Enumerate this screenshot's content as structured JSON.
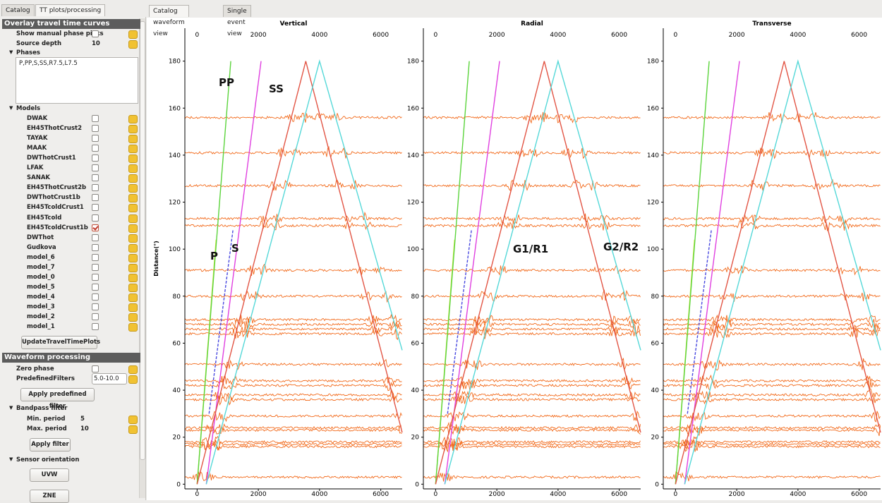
{
  "left_tabs": [
    "Catalog",
    "TT plots/processing"
  ],
  "right_tabs": [
    "Catalog waveform view",
    "Single event view"
  ],
  "overlay": {
    "title": "Overlay travel time curves",
    "manual_picks_label": "Show manual phase picks",
    "manual_picks_checked": false,
    "depth_label": "Source depth",
    "depth_value": 10,
    "phases_label": "Phases",
    "phases_text": "P,PP,S,SS,R7.5,L7.5",
    "models_label": "Models",
    "models": [
      {
        "name": "DWAK",
        "checked": false
      },
      {
        "name": "EH45ThotCrust2",
        "checked": false
      },
      {
        "name": "TAYAK",
        "checked": false
      },
      {
        "name": "MAAK",
        "checked": false
      },
      {
        "name": "DWThotCrust1",
        "checked": false
      },
      {
        "name": "LFAK",
        "checked": false
      },
      {
        "name": "SANAK",
        "checked": false
      },
      {
        "name": "EH45ThotCrust2b",
        "checked": false
      },
      {
        "name": "DWThotCrust1b",
        "checked": false
      },
      {
        "name": "EH45TcoldCrust1",
        "checked": false
      },
      {
        "name": "EH45Tcold",
        "checked": false
      },
      {
        "name": "EH45TcoldCrust1b",
        "checked": true
      },
      {
        "name": "DWThot",
        "checked": false
      },
      {
        "name": "Gudkova",
        "checked": false
      },
      {
        "name": "model_6",
        "checked": false
      },
      {
        "name": "model_7",
        "checked": false
      },
      {
        "name": "model_0",
        "checked": false
      },
      {
        "name": "model_5",
        "checked": false
      },
      {
        "name": "model_4",
        "checked": false
      },
      {
        "name": "model_3",
        "checked": false
      },
      {
        "name": "model_2",
        "checked": false
      },
      {
        "name": "model_1",
        "checked": false
      }
    ],
    "update_button": "UpdateTravelTimePlots"
  },
  "processing": {
    "title": "Waveform processing",
    "zero_phase_label": "Zero phase",
    "zero_phase_checked": false,
    "filters_label": "PredefinedFilters",
    "filters_value": "5.0-10.0",
    "apply_predefined_button": "Apply predefined filter",
    "bandpass_label": "Bandpass filter",
    "min_label": "Min. period",
    "min_value": 5,
    "max_label": "Max. period",
    "max_value": 10,
    "apply_filter_button": "Apply filter",
    "orientation_label": "Sensor orientation",
    "uvw_button": "UVW",
    "zne_button": "ZNE"
  },
  "chart_data": [
    {
      "type": "line",
      "title": "Vertical",
      "ylabel": "Distance(°)",
      "xlim": [
        -400,
        6700
      ],
      "xticks": [
        0,
        2000,
        4000,
        6000
      ],
      "ylim": [
        -2,
        194
      ],
      "yticks": [
        0,
        20,
        40,
        60,
        80,
        100,
        120,
        140,
        160,
        180
      ],
      "traces": [
        3,
        16,
        17,
        18,
        23,
        24,
        29,
        36,
        38,
        42,
        44,
        51,
        64,
        66,
        68,
        70,
        80,
        91,
        110,
        113,
        127,
        141,
        156
      ],
      "trace_color": "#f26a1b",
      "series": [
        {
          "color": "#d6e64a",
          "x": [
            0,
            620
          ],
          "values": [
            0,
            104
          ]
        },
        {
          "color": "#5bd43c",
          "x": [
            0,
            1100
          ],
          "values": [
            0,
            180
          ]
        },
        {
          "color": "#4a4ae0",
          "dash": true,
          "x": [
            390,
            1170
          ],
          "values": [
            30,
            108
          ]
        },
        {
          "color": "#e040e0",
          "x": [
            300,
            2090
          ],
          "values": [
            0,
            180
          ]
        },
        {
          "color": "#e25545",
          "x": [
            0,
            3550,
            6700
          ],
          "values": [
            0,
            180,
            22
          ]
        },
        {
          "color": "#55d8d8",
          "x": [
            300,
            4000,
            6700
          ],
          "values": [
            0,
            180,
            57
          ]
        }
      ],
      "annotations": [
        "PP",
        "SS",
        "S",
        "P"
      ]
    },
    {
      "type": "line",
      "title": "Radial",
      "xlim": [
        -400,
        6700
      ],
      "xticks": [
        0,
        2000,
        4000,
        6000
      ],
      "ylim": [
        -2,
        194
      ],
      "yticks": [
        0,
        20,
        40,
        60,
        80,
        100,
        120,
        140,
        160,
        180
      ],
      "traces": [
        3,
        16,
        17,
        18,
        23,
        24,
        29,
        36,
        38,
        42,
        44,
        51,
        64,
        66,
        68,
        70,
        80,
        91,
        110,
        113,
        127,
        141,
        156
      ],
      "trace_color": "#f26a1b",
      "series": [
        {
          "color": "#d6e64a",
          "x": [
            0,
            620
          ],
          "values": [
            0,
            104
          ]
        },
        {
          "color": "#5bd43c",
          "x": [
            0,
            1100
          ],
          "values": [
            0,
            180
          ]
        },
        {
          "color": "#4a4ae0",
          "dash": true,
          "x": [
            390,
            1170
          ],
          "values": [
            30,
            108
          ]
        },
        {
          "color": "#e040e0",
          "x": [
            300,
            2090
          ],
          "values": [
            0,
            180
          ]
        },
        {
          "color": "#e25545",
          "x": [
            0,
            3550,
            6700
          ],
          "values": [
            0,
            180,
            22
          ]
        },
        {
          "color": "#55d8d8",
          "x": [
            300,
            4000,
            6700
          ],
          "values": [
            0,
            180,
            57
          ]
        }
      ],
      "annotations": [
        "G1/R1",
        "G2/R2"
      ]
    },
    {
      "type": "line",
      "title": "Transverse",
      "xlim": [
        -400,
        6700
      ],
      "xticks": [
        0,
        2000,
        4000,
        6000
      ],
      "ylim": [
        -2,
        194
      ],
      "yticks": [
        0,
        20,
        40,
        60,
        80,
        100,
        120,
        140,
        160,
        180
      ],
      "traces": [
        3,
        16,
        17,
        18,
        23,
        24,
        29,
        36,
        38,
        42,
        44,
        51,
        64,
        66,
        68,
        70,
        80,
        91,
        110,
        113,
        127,
        141,
        156
      ],
      "trace_color": "#f26a1b",
      "series": [
        {
          "color": "#d6e64a",
          "x": [
            0,
            620
          ],
          "values": [
            0,
            104
          ]
        },
        {
          "color": "#5bd43c",
          "x": [
            0,
            1100
          ],
          "values": [
            0,
            180
          ]
        },
        {
          "color": "#4a4ae0",
          "dash": true,
          "x": [
            390,
            1170
          ],
          "values": [
            30,
            108
          ]
        },
        {
          "color": "#e040e0",
          "x": [
            300,
            2090
          ],
          "values": [
            0,
            180
          ]
        },
        {
          "color": "#e25545",
          "x": [
            0,
            3550,
            6700
          ],
          "values": [
            0,
            180,
            22
          ]
        },
        {
          "color": "#55d8d8",
          "x": [
            300,
            4000,
            6700
          ],
          "values": [
            0,
            180,
            57
          ]
        }
      ],
      "annotations": []
    }
  ]
}
